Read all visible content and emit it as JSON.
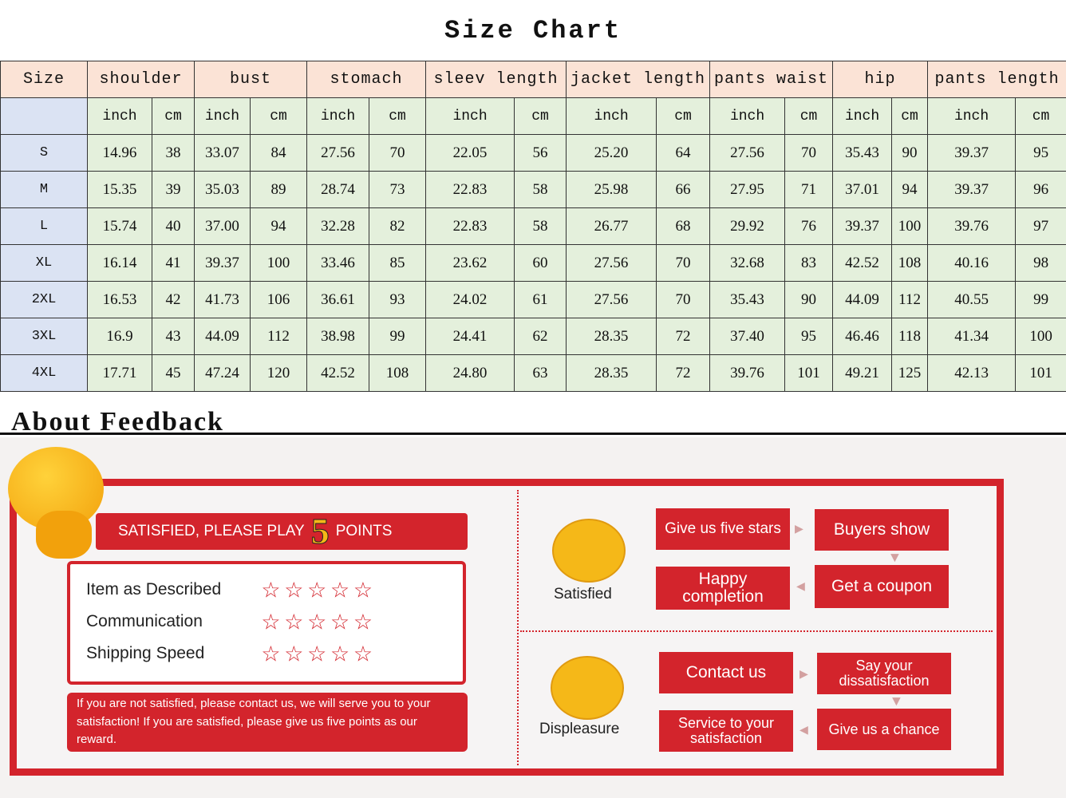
{
  "title": "Size Chart",
  "headers": [
    "Size",
    "shoulder",
    "bust",
    "stomach",
    "sleev length",
    "jacket length",
    "pants waist",
    "hip",
    "pants length"
  ],
  "units": [
    "inch",
    "cm"
  ],
  "rows": [
    [
      "S",
      "14.96",
      "38",
      "33.07",
      "84",
      "27.56",
      "70",
      "22.05",
      "56",
      "25.20",
      "64",
      "27.56",
      "70",
      "35.43",
      "90",
      "39.37",
      "95"
    ],
    [
      "M",
      "15.35",
      "39",
      "35.03",
      "89",
      "28.74",
      "73",
      "22.83",
      "58",
      "25.98",
      "66",
      "27.95",
      "71",
      "37.01",
      "94",
      "39.37",
      "96"
    ],
    [
      "L",
      "15.74",
      "40",
      "37.00",
      "94",
      "32.28",
      "82",
      "22.83",
      "58",
      "26.77",
      "68",
      "29.92",
      "76",
      "39.37",
      "100",
      "39.76",
      "97"
    ],
    [
      "XL",
      "16.14",
      "41",
      "39.37",
      "100",
      "33.46",
      "85",
      "23.62",
      "60",
      "27.56",
      "70",
      "32.68",
      "83",
      "42.52",
      "108",
      "40.16",
      "98"
    ],
    [
      "2XL",
      "16.53",
      "42",
      "41.73",
      "106",
      "36.61",
      "93",
      "24.02",
      "61",
      "27.56",
      "70",
      "35.43",
      "90",
      "44.09",
      "112",
      "40.55",
      "99"
    ],
    [
      "3XL",
      "16.9",
      "43",
      "44.09",
      "112",
      "38.98",
      "99",
      "24.41",
      "62",
      "28.35",
      "72",
      "37.40",
      "95",
      "46.46",
      "118",
      "41.34",
      "100"
    ],
    [
      "4XL",
      "17.71",
      "45",
      "47.24",
      "120",
      "42.52",
      "108",
      "24.80",
      "63",
      "28.35",
      "72",
      "39.76",
      "101",
      "49.21",
      "125",
      "42.13",
      "101"
    ]
  ],
  "feedback": {
    "title": "About Feedback",
    "banner_left": "SATISFIED, PLEASE PLAY",
    "banner_num": "5",
    "banner_right": "POINTS",
    "ratings": [
      {
        "label": "Item as Described",
        "stars": 5
      },
      {
        "label": "Communication",
        "stars": 5
      },
      {
        "label": "Shipping Speed",
        "stars": 5
      }
    ],
    "note": "If you are not satisfied, please contact us, we will serve you to your satisfaction! If you are satisfied, please give us five points as our reward.",
    "satisfied": {
      "label": "Satisfied",
      "steps": [
        "Give us five stars",
        "Buyers show",
        "Get a coupon",
        "Happy completion"
      ]
    },
    "displeasure": {
      "label": "Displeasure",
      "steps": [
        "Contact us",
        "Say your dissatisfaction",
        "Give us a chance",
        "Service to your satisfaction"
      ]
    }
  },
  "colors": {
    "header": "#fbe3d6",
    "size_col": "#dbe3f3",
    "cells": "#e4f0dc",
    "accent_red": "#d3242c"
  }
}
